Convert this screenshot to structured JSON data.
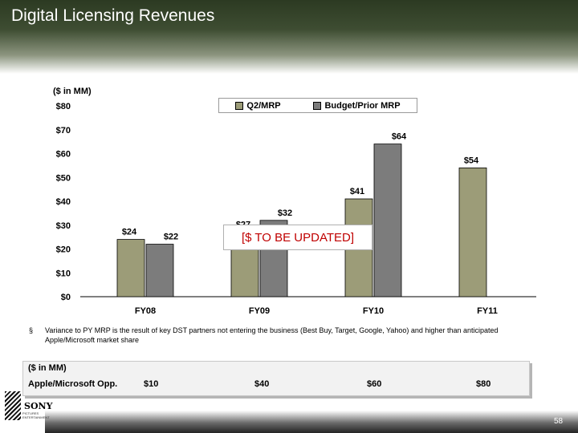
{
  "slide": {
    "title": "Digital Licensing Revenues",
    "page_number": "58"
  },
  "chart_data": {
    "type": "bar",
    "unit_label": "($ in MM)",
    "categories": [
      "FY08",
      "FY09",
      "FY10",
      "FY11"
    ],
    "series": [
      {
        "name": "Q2/MRP",
        "values": [
          24,
          27,
          41,
          54
        ],
        "labels": [
          "$24",
          "$27",
          "$41",
          "$54"
        ],
        "color": "#9c9c78"
      },
      {
        "name": "Budget/Prior MRP",
        "values": [
          22,
          32,
          64,
          null
        ],
        "labels": [
          "$22",
          "$32",
          "$64",
          ""
        ],
        "color": "#7c7c7c"
      }
    ],
    "ylim": [
      0,
      80
    ],
    "yticks": [
      0,
      10,
      20,
      30,
      40,
      50,
      60,
      70,
      80
    ],
    "ytick_labels": [
      "$0",
      "$10",
      "$20",
      "$30",
      "$40",
      "$50",
      "$60",
      "$70",
      "$80"
    ],
    "grid": false,
    "legend_position": "top-right"
  },
  "overlay_note": "[$ TO BE UPDATED]",
  "bullet": {
    "mark": "§",
    "text": "Variance to PY MRP is the result of key DST partners not entering the business (Best Buy, Target, Google, Yahoo) and higher than anticipated Apple/Microsoft market share"
  },
  "opportunity_table": {
    "units": "($ in MM)",
    "label": "Apple/Microsoft Opp.",
    "values": [
      "$10",
      "$40",
      "$60",
      "$80"
    ]
  },
  "logo": {
    "wordmark": "SONY",
    "sub": "PICTURES ENTERTAINMENT"
  }
}
